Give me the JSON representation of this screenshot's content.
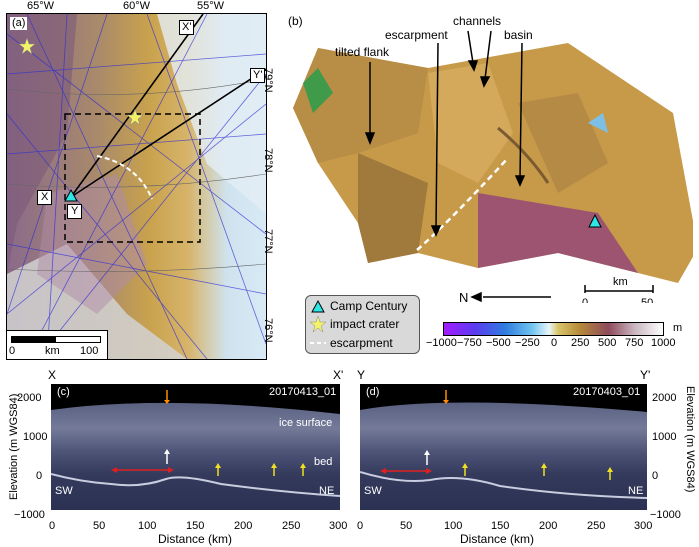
{
  "panel_a": {
    "label": "(a)",
    "lon_labels": [
      "65°W",
      "60°W",
      "55°W"
    ],
    "lat_labels": [
      "79°N",
      "78°N",
      "77°N",
      "76°N"
    ],
    "line_labels": {
      "x_start": "X",
      "x_end": "X'",
      "y_start": "Y",
      "y_end": "Y'"
    },
    "scalebar": {
      "left": "0",
      "mid": "km",
      "right": "100"
    }
  },
  "panel_b": {
    "label": "(b)",
    "annotations": [
      "tilted flank",
      "escarpment",
      "channels",
      "basin"
    ],
    "north": "N",
    "scalebar": {
      "unit": "km",
      "left": "0",
      "right": "50"
    }
  },
  "legend": {
    "items": [
      "Camp Century",
      "impact crater",
      "escarpment"
    ]
  },
  "colorbar": {
    "unit": "m",
    "ticks": [
      "−1000",
      "−750",
      "−500",
      "−250",
      "0",
      "250",
      "500",
      "750",
      "1000"
    ]
  },
  "panel_c": {
    "label": "(c)",
    "id": "20170413_01",
    "start": "X",
    "end": "X'",
    "surface_label": "ice surface",
    "bed_label": "bed",
    "left_dir": "SW",
    "right_dir": "NE",
    "x_ticks": [
      "0",
      "50",
      "100",
      "150",
      "200",
      "250",
      "300"
    ],
    "y_ticks": [
      "2000",
      "1000",
      "0",
      "−1000"
    ],
    "xlabel": "Distance (km)"
  },
  "panel_d": {
    "label": "(d)",
    "id": "20170403_01",
    "start": "Y",
    "end": "Y'",
    "left_dir": "SW",
    "right_dir": "NE",
    "x_ticks": [
      "0",
      "50",
      "100",
      "150",
      "200",
      "250",
      "300"
    ],
    "y_ticks": [
      "2000",
      "1000",
      "0",
      "−1000"
    ],
    "xlabel": "Distance (km)"
  },
  "ylabel": "Elevation (m WGS84)"
}
